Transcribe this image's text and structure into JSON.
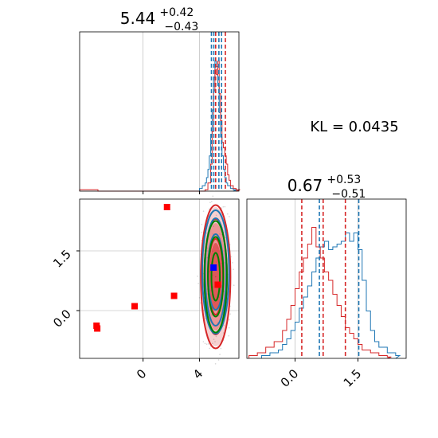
{
  "chart_data": {
    "type": "corner",
    "kl_text": "KL = 0.0435",
    "colors": {
      "blue": "#1f77b4",
      "red": "#d62728",
      "green": "#008000",
      "grid": "#b0b0b0"
    },
    "param1": {
      "title_main": "5.44",
      "title_plus": "+0.42",
      "title_minus": "−0.43",
      "xlim": [
        -4.5,
        6.8
      ],
      "xticks": [
        0,
        4
      ],
      "xticklabels": [
        "0",
        "4"
      ],
      "lines_blue": [
        4.85,
        5.02,
        5.38,
        5.57
      ],
      "lines_red": [
        5.15,
        5.84
      ]
    },
    "param2": {
      "title_main": "0.67",
      "title_plus": "+0.53",
      "title_minus": "−0.51",
      "xlim": [
        -1.15,
        2.65
      ],
      "xticks": [
        0.0,
        1.5
      ],
      "xticklabels": [
        "0.0",
        "1.5"
      ],
      "lines_blue": [
        0.58,
        1.52
      ],
      "lines_red": [
        0.16,
        0.67,
        1.2
      ],
      "ylim": [
        -1.2,
        2.8
      ],
      "yticks": [
        0.0,
        1.5
      ],
      "yticklabels": [
        "0.0",
        "1.5"
      ]
    },
    "hist1_blue": [
      [
        4.0,
        0.02
      ],
      [
        4.2,
        0.04
      ],
      [
        4.4,
        0.06
      ],
      [
        4.5,
        0.1
      ],
      [
        4.6,
        0.16
      ],
      [
        4.7,
        0.26
      ],
      [
        4.8,
        0.42
      ],
      [
        4.9,
        0.6
      ],
      [
        5.0,
        0.84
      ],
      [
        5.1,
        0.96
      ],
      [
        5.2,
        0.92
      ],
      [
        5.3,
        0.78
      ],
      [
        5.4,
        0.58
      ],
      [
        5.5,
        0.4
      ],
      [
        5.6,
        0.26
      ],
      [
        5.7,
        0.16
      ],
      [
        5.8,
        0.1
      ],
      [
        5.9,
        0.06
      ],
      [
        6.0,
        0.04
      ],
      [
        6.2,
        0.02
      ],
      [
        6.4,
        0.01
      ]
    ],
    "hist1_red": [
      [
        -4.5,
        0.01
      ],
      [
        -3.2,
        0.0
      ],
      [
        4.4,
        0.01
      ],
      [
        4.6,
        0.06
      ],
      [
        4.8,
        0.2
      ],
      [
        4.9,
        0.44
      ],
      [
        5.0,
        0.74
      ],
      [
        5.1,
        0.9
      ],
      [
        5.2,
        0.86
      ],
      [
        5.3,
        0.96
      ],
      [
        5.4,
        0.72
      ],
      [
        5.5,
        0.52
      ],
      [
        5.6,
        0.36
      ],
      [
        5.7,
        0.32
      ],
      [
        5.8,
        0.26
      ],
      [
        5.9,
        0.2
      ],
      [
        6.0,
        0.12
      ],
      [
        6.1,
        0.08
      ],
      [
        6.2,
        0.04
      ],
      [
        6.4,
        0.02
      ],
      [
        6.6,
        0.01
      ]
    ],
    "hist2_blue": [
      [
        -0.8,
        0.02
      ],
      [
        -0.6,
        0.04
      ],
      [
        -0.4,
        0.06
      ],
      [
        -0.3,
        0.1
      ],
      [
        -0.2,
        0.14
      ],
      [
        -0.1,
        0.2
      ],
      [
        0.0,
        0.26
      ],
      [
        0.1,
        0.36
      ],
      [
        0.2,
        0.44
      ],
      [
        0.3,
        0.52
      ],
      [
        0.4,
        0.62
      ],
      [
        0.5,
        0.72
      ],
      [
        0.6,
        0.8
      ],
      [
        0.7,
        0.84
      ],
      [
        0.8,
        0.78
      ],
      [
        0.9,
        0.8
      ],
      [
        1.0,
        0.82
      ],
      [
        1.1,
        0.84
      ],
      [
        1.2,
        0.9
      ],
      [
        1.3,
        0.84
      ],
      [
        1.4,
        0.9
      ],
      [
        1.5,
        0.78
      ],
      [
        1.6,
        0.56
      ],
      [
        1.7,
        0.34
      ],
      [
        1.8,
        0.2
      ],
      [
        1.9,
        0.12
      ],
      [
        2.0,
        0.08
      ],
      [
        2.2,
        0.04
      ],
      [
        2.4,
        0.02
      ]
    ],
    "hist2_red": [
      [
        -1.1,
        0.02
      ],
      [
        -0.9,
        0.04
      ],
      [
        -0.7,
        0.08
      ],
      [
        -0.5,
        0.12
      ],
      [
        -0.3,
        0.2
      ],
      [
        -0.2,
        0.28
      ],
      [
        -0.1,
        0.38
      ],
      [
        0.0,
        0.5
      ],
      [
        0.1,
        0.62
      ],
      [
        0.2,
        0.72
      ],
      [
        0.3,
        0.82
      ],
      [
        0.4,
        0.94
      ],
      [
        0.5,
        0.8
      ],
      [
        0.6,
        0.72
      ],
      [
        0.7,
        0.62
      ],
      [
        0.8,
        0.56
      ],
      [
        0.9,
        0.46
      ],
      [
        1.0,
        0.38
      ],
      [
        1.1,
        0.3
      ],
      [
        1.2,
        0.22
      ],
      [
        1.3,
        0.18
      ],
      [
        1.4,
        0.14
      ],
      [
        1.5,
        0.1
      ],
      [
        1.6,
        0.06
      ],
      [
        1.8,
        0.04
      ],
      [
        2.0,
        0.02
      ],
      [
        2.2,
        0.01
      ]
    ],
    "red_squares": [
      [
        1.7,
        2.6
      ],
      [
        2.2,
        0.37
      ],
      [
        -0.6,
        0.11
      ],
      [
        -3.3,
        -0.38
      ],
      [
        -3.25,
        -0.45
      ],
      [
        5.3,
        0.65
      ]
    ],
    "blue_square": [
      5.0,
      1.08
    ],
    "contours": {
      "center": [
        5.15,
        0.85
      ],
      "red_fill_levels": [
        [
          0.45,
          0.85
        ],
        [
          0.75,
          1.35
        ],
        [
          1.0,
          1.75
        ]
      ],
      "red_line_levels": [
        [
          0.52,
          0.95
        ],
        [
          0.8,
          1.45
        ],
        [
          1.05,
          1.8
        ]
      ],
      "blue_levels": [
        [
          0.55,
          0.95
        ],
        [
          0.75,
          1.35
        ],
        [
          0.95,
          1.55
        ]
      ],
      "green_levels": [
        [
          0.3,
          0.6
        ],
        [
          0.55,
          1.0
        ],
        [
          0.8,
          1.4
        ]
      ]
    }
  }
}
